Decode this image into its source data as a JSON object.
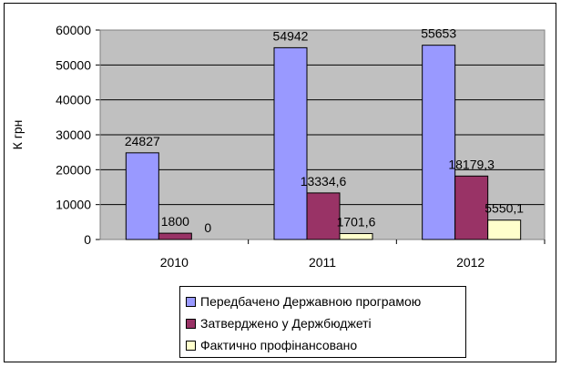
{
  "chart_data": {
    "type": "bar",
    "title": "",
    "xlabel": "",
    "ylabel": "К грн",
    "categories": [
      "2010",
      "2011",
      "2012"
    ],
    "ylim": [
      0,
      60000
    ],
    "yticks": [
      "0",
      "10000",
      "20000",
      "30000",
      "40000",
      "50000",
      "60000"
    ],
    "grid": true,
    "legend_position": "bottom",
    "series": [
      {
        "name": "Передбачено Державною програмою",
        "values": [
          24827,
          54942,
          55653
        ],
        "labels": [
          "24827",
          "54942",
          "55653"
        ],
        "color": "#9999ff"
      },
      {
        "name": "Затверджено у Держбюджеті",
        "values": [
          1800,
          13334.6,
          18179.3
        ],
        "labels": [
          "1800",
          "13334,6",
          "18179,3"
        ],
        "color": "#993366"
      },
      {
        "name": "Фактично профінансовано",
        "values": [
          0,
          1701.6,
          5550.1
        ],
        "labels": [
          "0",
          "1701,6",
          "5550,1"
        ],
        "color": "#ffffcc"
      }
    ],
    "plot_background": "#c0c0c0"
  }
}
